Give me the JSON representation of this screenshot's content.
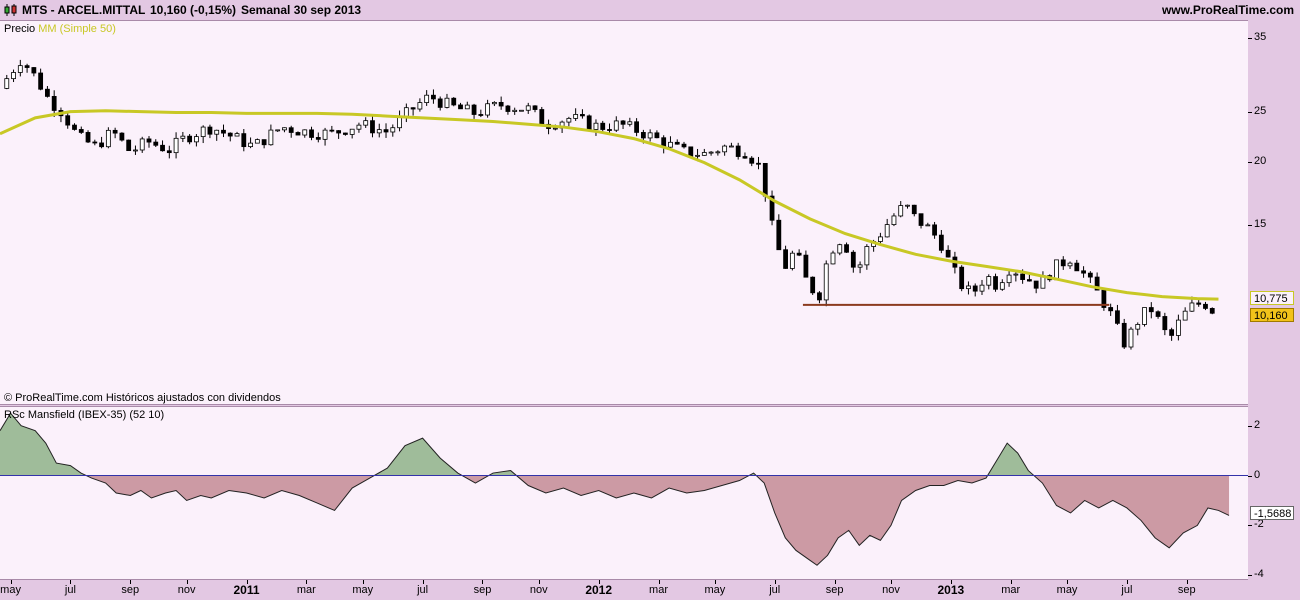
{
  "header": {
    "ticker": "MTS - ARCEL.MITTAL",
    "quote": "10,160 (-0,15%)",
    "period": "Semanal  30 sep 2013",
    "site": "www.ProRealTime.com"
  },
  "price_panel": {
    "legend_prefix": "Precio",
    "legend_ma": "MM (Simple 50)",
    "copyright": "© ProRealTime.com  Históricos ajustados con dividendos",
    "ma_value": "10,775",
    "last_value": "10,160"
  },
  "rsc_panel": {
    "legend": "RSc Mansfield (IBEX-35) (52 10)",
    "last_value": "-1,5688"
  },
  "colors": {
    "background": "#e3c8e3",
    "panel": "#fbf1fb",
    "ma_line": "#c8c825",
    "support_line": "#8b3a1e",
    "rsc_positive": "#9fbc9a",
    "rsc_negative": "#cc9aa4",
    "zero_line": "#3333aa"
  },
  "chart_data": [
    {
      "type": "candlestick",
      "title": "MTS - ARCEL.MITTAL",
      "y_scale": "log",
      "ylim": [
        6.7,
        38
      ],
      "yticks": [
        15,
        20,
        25,
        35
      ],
      "xlim": [
        2010.3,
        2013.77
      ],
      "x_ticks": [
        {
          "label": "may",
          "x": 2010.33
        },
        {
          "label": "jul",
          "x": 2010.5
        },
        {
          "label": "sep",
          "x": 2010.67
        },
        {
          "label": "nov",
          "x": 2010.83
        },
        {
          "label": "2011",
          "x": 2011.0,
          "year": true
        },
        {
          "label": "mar",
          "x": 2011.17
        },
        {
          "label": "may",
          "x": 2011.33
        },
        {
          "label": "jul",
          "x": 2011.5
        },
        {
          "label": "sep",
          "x": 2011.67
        },
        {
          "label": "nov",
          "x": 2011.83
        },
        {
          "label": "2012",
          "x": 2012.0,
          "year": true
        },
        {
          "label": "mar",
          "x": 2012.17
        },
        {
          "label": "may",
          "x": 2012.33
        },
        {
          "label": "jul",
          "x": 2012.5
        },
        {
          "label": "sep",
          "x": 2012.67
        },
        {
          "label": "nov",
          "x": 2012.83
        },
        {
          "label": "2013",
          "x": 2013.0,
          "year": true
        },
        {
          "label": "mar",
          "x": 2013.17
        },
        {
          "label": "may",
          "x": 2013.33
        },
        {
          "label": "jul",
          "x": 2013.5
        },
        {
          "label": "sep",
          "x": 2013.67
        }
      ],
      "close_path": [
        [
          2010.3,
          28.0
        ],
        [
          2010.36,
          32.0
        ],
        [
          2010.4,
          29.5
        ],
        [
          2010.44,
          26.5
        ],
        [
          2010.47,
          25.5
        ],
        [
          2010.52,
          22.5
        ],
        [
          2010.57,
          21.5
        ],
        [
          2010.62,
          23.0
        ],
        [
          2010.67,
          21.0
        ],
        [
          2010.72,
          22.0
        ],
        [
          2010.78,
          21.2
        ],
        [
          2010.83,
          22.5
        ],
        [
          2010.9,
          23.5
        ],
        [
          2010.96,
          22.5
        ],
        [
          2011.02,
          21.5
        ],
        [
          2011.1,
          23.5
        ],
        [
          2011.17,
          23.0
        ],
        [
          2011.24,
          22.8
        ],
        [
          2011.32,
          23.8
        ],
        [
          2011.4,
          23.0
        ],
        [
          2011.47,
          25.5
        ],
        [
          2011.52,
          27.0
        ],
        [
          2011.58,
          25.8
        ],
        [
          2011.65,
          25.0
        ],
        [
          2011.72,
          26.0
        ],
        [
          2011.8,
          25.5
        ],
        [
          2011.85,
          23.8
        ],
        [
          2011.92,
          24.5
        ],
        [
          2012.0,
          23.5
        ],
        [
          2012.06,
          23.8
        ],
        [
          2012.12,
          23.0
        ],
        [
          2012.18,
          22.0
        ],
        [
          2012.24,
          21.0
        ],
        [
          2012.3,
          20.8
        ],
        [
          2012.36,
          21.5
        ],
        [
          2012.42,
          21.0
        ],
        [
          2012.46,
          19.5
        ],
        [
          2012.48,
          16.5
        ],
        [
          2012.5,
          14.0
        ],
        [
          2012.53,
          12.5
        ],
        [
          2012.56,
          13.5
        ],
        [
          2012.58,
          12.0
        ],
        [
          2012.61,
          11.2
        ],
        [
          2012.63,
          11.0
        ],
        [
          2012.65,
          13.0
        ],
        [
          2012.68,
          14.2
        ],
        [
          2012.71,
          13.5
        ],
        [
          2012.73,
          12.0
        ],
        [
          2012.76,
          13.5
        ],
        [
          2012.8,
          14.5
        ],
        [
          2012.83,
          15.5
        ],
        [
          2012.87,
          16.5
        ],
        [
          2012.9,
          15.5
        ],
        [
          2012.93,
          15.0
        ],
        [
          2012.97,
          14.0
        ],
        [
          2013.0,
          12.5
        ],
        [
          2013.03,
          11.5
        ],
        [
          2013.06,
          11.0
        ],
        [
          2013.1,
          12.0
        ],
        [
          2013.13,
          11.5
        ],
        [
          2013.17,
          12.5
        ],
        [
          2013.2,
          12.0
        ],
        [
          2013.25,
          11.5
        ],
        [
          2013.3,
          12.5
        ],
        [
          2013.34,
          13.0
        ],
        [
          2013.38,
          12.0
        ],
        [
          2013.42,
          11.0
        ],
        [
          2013.45,
          10.2
        ],
        [
          2013.47,
          9.5
        ],
        [
          2013.49,
          8.8
        ],
        [
          2013.51,
          9.2
        ],
        [
          2013.54,
          10.0
        ],
        [
          2013.57,
          10.3
        ],
        [
          2013.6,
          9.5
        ],
        [
          2013.62,
          8.9
        ],
        [
          2013.64,
          9.5
        ],
        [
          2013.66,
          10.0
        ],
        [
          2013.69,
          10.5
        ],
        [
          2013.72,
          10.6
        ],
        [
          2013.74,
          10.3
        ],
        [
          2013.75,
          10.16
        ]
      ],
      "series": [
        {
          "name": "MM (Simple 50)",
          "type": "line",
          "points": [
            [
              2010.3,
              22.8
            ],
            [
              2010.4,
              24.5
            ],
            [
              2010.5,
              25.2
            ],
            [
              2010.6,
              25.3
            ],
            [
              2010.7,
              25.2
            ],
            [
              2010.8,
              25.1
            ],
            [
              2010.9,
              25.1
            ],
            [
              2011.0,
              25.0
            ],
            [
              2011.1,
              25.0
            ],
            [
              2011.2,
              25.0
            ],
            [
              2011.3,
              24.9
            ],
            [
              2011.4,
              24.7
            ],
            [
              2011.5,
              24.5
            ],
            [
              2011.6,
              24.3
            ],
            [
              2011.7,
              24.1
            ],
            [
              2011.8,
              23.8
            ],
            [
              2011.9,
              23.5
            ],
            [
              2012.0,
              23.0
            ],
            [
              2012.1,
              22.3
            ],
            [
              2012.2,
              21.3
            ],
            [
              2012.3,
              20.0
            ],
            [
              2012.4,
              18.5
            ],
            [
              2012.5,
              16.8
            ],
            [
              2012.6,
              15.5
            ],
            [
              2012.7,
              14.5
            ],
            [
              2012.8,
              13.8
            ],
            [
              2012.9,
              13.2
            ],
            [
              2013.0,
              12.8
            ],
            [
              2013.1,
              12.5
            ],
            [
              2013.2,
              12.2
            ],
            [
              2013.3,
              11.8
            ],
            [
              2013.4,
              11.4
            ],
            [
              2013.5,
              11.1
            ],
            [
              2013.6,
              10.9
            ],
            [
              2013.7,
              10.8
            ],
            [
              2013.76,
              10.775
            ]
          ]
        },
        {
          "name": "",
          "type": "hline",
          "y": 10.5,
          "x_range": [
            2012.58,
            2013.45
          ]
        }
      ]
    },
    {
      "type": "area",
      "title": "RSc Mansfield (IBEX-35) (52 10)",
      "ylim": [
        -4.15,
        2.75
      ],
      "yticks": [
        -4,
        -2,
        0,
        2
      ],
      "baseline": 0,
      "points": [
        [
          2010.3,
          1.8
        ],
        [
          2010.33,
          2.5
        ],
        [
          2010.36,
          2.0
        ],
        [
          2010.4,
          1.8
        ],
        [
          2010.43,
          1.3
        ],
        [
          2010.46,
          0.5
        ],
        [
          2010.5,
          0.4
        ],
        [
          2010.53,
          0.1
        ],
        [
          2010.56,
          -0.1
        ],
        [
          2010.6,
          -0.3
        ],
        [
          2010.63,
          -0.7
        ],
        [
          2010.67,
          -0.8
        ],
        [
          2010.7,
          -0.6
        ],
        [
          2010.73,
          -0.9
        ],
        [
          2010.77,
          -0.7
        ],
        [
          2010.8,
          -0.6
        ],
        [
          2010.83,
          -1.0
        ],
        [
          2010.87,
          -0.8
        ],
        [
          2010.9,
          -0.9
        ],
        [
          2010.95,
          -0.6
        ],
        [
          2011.0,
          -0.7
        ],
        [
          2011.05,
          -0.9
        ],
        [
          2011.1,
          -0.6
        ],
        [
          2011.15,
          -0.8
        ],
        [
          2011.2,
          -1.1
        ],
        [
          2011.25,
          -1.4
        ],
        [
          2011.3,
          -0.5
        ],
        [
          2011.35,
          -0.1
        ],
        [
          2011.4,
          0.3
        ],
        [
          2011.45,
          1.2
        ],
        [
          2011.5,
          1.5
        ],
        [
          2011.55,
          0.7
        ],
        [
          2011.6,
          0.1
        ],
        [
          2011.65,
          -0.3
        ],
        [
          2011.7,
          0.1
        ],
        [
          2011.75,
          0.2
        ],
        [
          2011.8,
          -0.4
        ],
        [
          2011.85,
          -0.7
        ],
        [
          2011.9,
          -0.5
        ],
        [
          2011.95,
          -0.8
        ],
        [
          2012.0,
          -0.6
        ],
        [
          2012.05,
          -0.9
        ],
        [
          2012.1,
          -0.7
        ],
        [
          2012.15,
          -0.9
        ],
        [
          2012.2,
          -0.5
        ],
        [
          2012.25,
          -0.7
        ],
        [
          2012.3,
          -0.6
        ],
        [
          2012.35,
          -0.4
        ],
        [
          2012.4,
          -0.2
        ],
        [
          2012.44,
          0.1
        ],
        [
          2012.47,
          -0.3
        ],
        [
          2012.5,
          -1.5
        ],
        [
          2012.53,
          -2.5
        ],
        [
          2012.56,
          -3.0
        ],
        [
          2012.6,
          -3.4
        ],
        [
          2012.62,
          -3.6
        ],
        [
          2012.65,
          -3.2
        ],
        [
          2012.68,
          -2.5
        ],
        [
          2012.71,
          -2.2
        ],
        [
          2012.74,
          -2.8
        ],
        [
          2012.77,
          -2.4
        ],
        [
          2012.8,
          -2.6
        ],
        [
          2012.83,
          -2.0
        ],
        [
          2012.86,
          -1.0
        ],
        [
          2012.9,
          -0.6
        ],
        [
          2012.94,
          -0.4
        ],
        [
          2012.98,
          -0.4
        ],
        [
          2013.02,
          -0.2
        ],
        [
          2013.06,
          -0.3
        ],
        [
          2013.1,
          -0.1
        ],
        [
          2013.13,
          0.6
        ],
        [
          2013.16,
          1.3
        ],
        [
          2013.19,
          0.9
        ],
        [
          2013.22,
          0.2
        ],
        [
          2013.26,
          -0.3
        ],
        [
          2013.3,
          -1.2
        ],
        [
          2013.34,
          -1.5
        ],
        [
          2013.38,
          -1.0
        ],
        [
          2013.42,
          -1.3
        ],
        [
          2013.46,
          -1.0
        ],
        [
          2013.5,
          -1.3
        ],
        [
          2013.54,
          -1.8
        ],
        [
          2013.58,
          -2.5
        ],
        [
          2013.62,
          -2.9
        ],
        [
          2013.66,
          -2.3
        ],
        [
          2013.7,
          -2.0
        ],
        [
          2013.73,
          -1.3
        ],
        [
          2013.76,
          -1.4
        ],
        [
          2013.79,
          -1.6
        ]
      ]
    }
  ]
}
